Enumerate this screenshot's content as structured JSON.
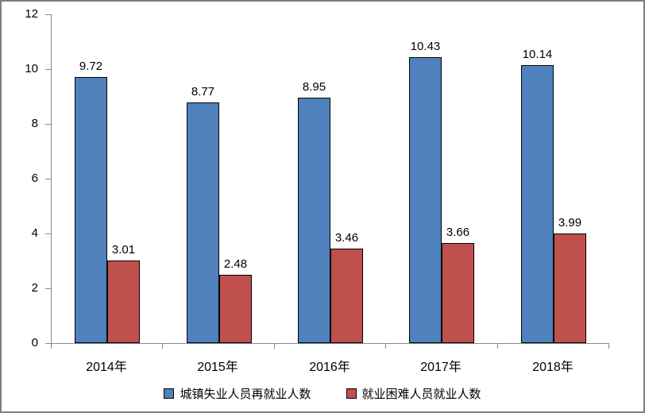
{
  "chart_data": {
    "type": "bar",
    "title": "",
    "xlabel": "",
    "ylabel": "",
    "categories": [
      "2014年",
      "2015年",
      "2016年",
      "2017年",
      "2018年"
    ],
    "series": [
      {
        "name": "城镇失业人员再就业人数",
        "color": "#4f81bd",
        "values": [
          9.72,
          8.77,
          8.95,
          10.43,
          10.14
        ]
      },
      {
        "name": "就业困难人员就业人数",
        "color": "#c0504d",
        "values": [
          3.01,
          2.48,
          3.46,
          3.66,
          3.99
        ]
      }
    ],
    "ylim": [
      0,
      12
    ],
    "yticks": [
      0,
      2,
      4,
      6,
      8,
      10,
      12
    ],
    "grid": false,
    "legend_position": "bottom",
    "data_labels_shown": true
  },
  "colors": {
    "axis": "#8a8a8a",
    "frame_border": "#7f7f7f",
    "bar_border": "#000000",
    "text": "#000000",
    "background": "#ffffff"
  }
}
